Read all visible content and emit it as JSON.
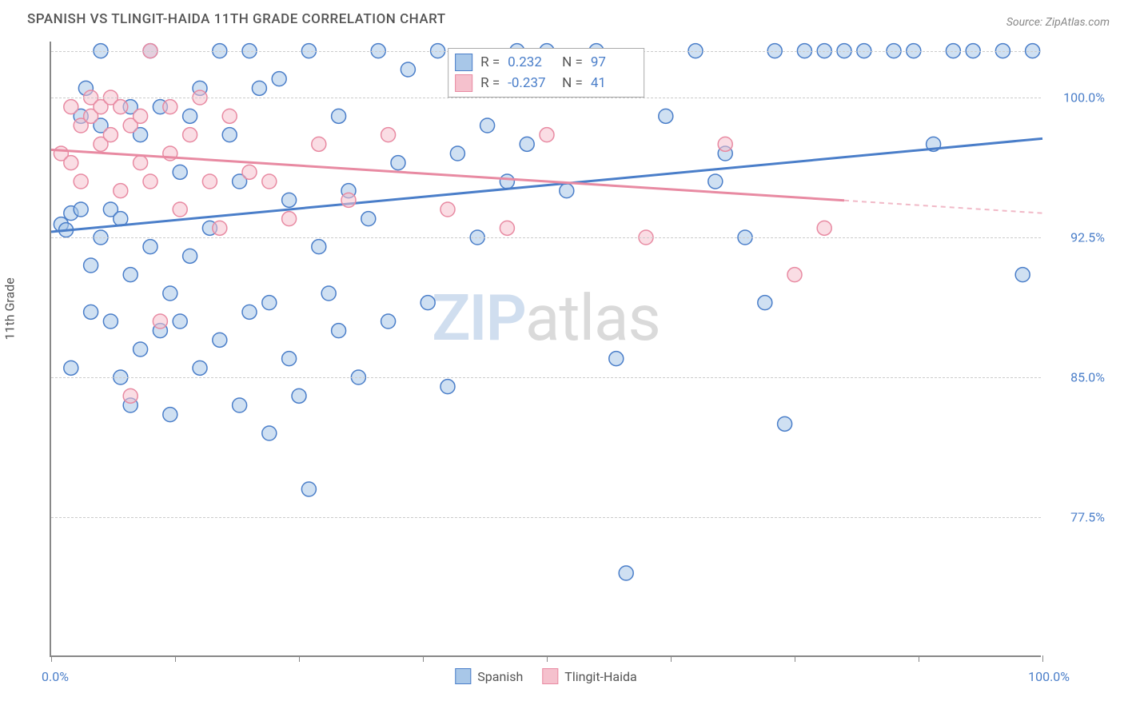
{
  "title": "SPANISH VS TLINGIT-HAIDA 11TH GRADE CORRELATION CHART",
  "source": "Source: ZipAtlas.com",
  "y_label": "11th Grade",
  "watermark": {
    "left": "ZIP",
    "right": "atlas"
  },
  "chart": {
    "type": "scatter",
    "xlim": [
      0,
      100
    ],
    "ylim": [
      70,
      103
    ],
    "x_ticks": [
      0,
      12.5,
      25,
      37.5,
      50,
      62.5,
      75,
      87.5,
      100
    ],
    "x_tick_labels": {
      "0": "0.0%",
      "100": "100.0%"
    },
    "y_gridlines": [
      77.5,
      85.0,
      92.5,
      100.0,
      102.5
    ],
    "y_tick_labels": {
      "77.5": "77.5%",
      "85.0": "85.0%",
      "92.5": "92.5%",
      "100.0": "100.0%"
    },
    "background_color": "#ffffff",
    "grid_color": "#cccccc",
    "axis_color": "#888888",
    "label_color": "#4a7ec9",
    "marker_radius": 9,
    "marker_opacity": 0.55,
    "series": [
      {
        "name": "Spanish",
        "color_fill": "#a8c7e8",
        "color_stroke": "#4a7ec9",
        "r": 0.232,
        "n": 97,
        "trend": {
          "x0": 0,
          "y0": 92.8,
          "x1": 100,
          "y1": 97.8,
          "solid_to_x": 100
        },
        "points": [
          [
            1,
            93.2
          ],
          [
            1.5,
            92.9
          ],
          [
            2,
            93.8
          ],
          [
            2,
            85.5
          ],
          [
            3,
            94.0
          ],
          [
            3,
            99.0
          ],
          [
            3.5,
            100.5
          ],
          [
            4,
            88.5
          ],
          [
            4,
            91.0
          ],
          [
            5,
            98.5
          ],
          [
            5,
            92.5
          ],
          [
            5,
            102.5
          ],
          [
            6,
            94.0
          ],
          [
            6,
            88.0
          ],
          [
            7,
            93.5
          ],
          [
            7,
            85.0
          ],
          [
            8,
            99.5
          ],
          [
            8,
            90.5
          ],
          [
            8,
            83.5
          ],
          [
            9,
            98.0
          ],
          [
            9,
            86.5
          ],
          [
            10,
            102.5
          ],
          [
            10,
            92.0
          ],
          [
            11,
            87.5
          ],
          [
            11,
            99.5
          ],
          [
            12,
            83.0
          ],
          [
            12,
            89.5
          ],
          [
            13,
            96.0
          ],
          [
            13,
            88.0
          ],
          [
            14,
            91.5
          ],
          [
            14,
            99.0
          ],
          [
            15,
            85.5
          ],
          [
            15,
            100.5
          ],
          [
            16,
            93.0
          ],
          [
            17,
            102.5
          ],
          [
            17,
            87.0
          ],
          [
            18,
            98.0
          ],
          [
            19,
            83.5
          ],
          [
            19,
            95.5
          ],
          [
            20,
            88.5
          ],
          [
            20,
            102.5
          ],
          [
            21,
            100.5
          ],
          [
            22,
            89.0
          ],
          [
            22,
            82.0
          ],
          [
            23,
            101.0
          ],
          [
            24,
            86.0
          ],
          [
            24,
            94.5
          ],
          [
            25,
            84.0
          ],
          [
            26,
            79.0
          ],
          [
            26,
            102.5
          ],
          [
            27,
            92.0
          ],
          [
            28,
            89.5
          ],
          [
            29,
            99.0
          ],
          [
            29,
            87.5
          ],
          [
            30,
            95.0
          ],
          [
            31,
            85.0
          ],
          [
            32,
            93.5
          ],
          [
            33,
            102.5
          ],
          [
            34,
            88.0
          ],
          [
            35,
            96.5
          ],
          [
            36,
            101.5
          ],
          [
            38,
            89.0
          ],
          [
            39,
            102.5
          ],
          [
            40,
            84.5
          ],
          [
            41,
            97.0
          ],
          [
            42,
            101.0
          ],
          [
            43,
            92.5
          ],
          [
            44,
            98.5
          ],
          [
            46,
            95.5
          ],
          [
            47,
            102.5
          ],
          [
            48,
            97.5
          ],
          [
            50,
            102.5
          ],
          [
            52,
            95.0
          ],
          [
            53,
            101.5
          ],
          [
            55,
            102.5
          ],
          [
            57,
            86.0
          ],
          [
            58,
            74.5
          ],
          [
            62,
            99.0
          ],
          [
            65,
            102.5
          ],
          [
            67,
            95.5
          ],
          [
            68,
            97.0
          ],
          [
            70,
            92.5
          ],
          [
            72,
            89.0
          ],
          [
            73,
            102.5
          ],
          [
            74,
            82.5
          ],
          [
            76,
            102.5
          ],
          [
            78,
            102.5
          ],
          [
            80,
            102.5
          ],
          [
            82,
            102.5
          ],
          [
            85,
            102.5
          ],
          [
            87,
            102.5
          ],
          [
            89,
            97.5
          ],
          [
            91,
            102.5
          ],
          [
            93,
            102.5
          ],
          [
            96,
            102.5
          ],
          [
            98,
            90.5
          ],
          [
            99,
            102.5
          ]
        ]
      },
      {
        "name": "Tlingit-Haida",
        "color_fill": "#f5c1cd",
        "color_stroke": "#e88aa2",
        "r": -0.237,
        "n": 41,
        "trend": {
          "x0": 0,
          "y0": 97.2,
          "x1": 100,
          "y1": 93.8,
          "solid_to_x": 80
        },
        "points": [
          [
            1,
            97.0
          ],
          [
            2,
            96.5
          ],
          [
            2,
            99.5
          ],
          [
            3,
            95.5
          ],
          [
            3,
            98.5
          ],
          [
            4,
            99.0
          ],
          [
            4,
            100.0
          ],
          [
            5,
            99.5
          ],
          [
            5,
            97.5
          ],
          [
            6,
            100.0
          ],
          [
            6,
            98.0
          ],
          [
            7,
            99.5
          ],
          [
            7,
            95.0
          ],
          [
            8,
            98.5
          ],
          [
            8,
            84.0
          ],
          [
            9,
            96.5
          ],
          [
            9,
            99.0
          ],
          [
            10,
            95.5
          ],
          [
            10,
            102.5
          ],
          [
            11,
            88.0
          ],
          [
            12,
            97.0
          ],
          [
            12,
            99.5
          ],
          [
            13,
            94.0
          ],
          [
            14,
            98.0
          ],
          [
            15,
            100.0
          ],
          [
            16,
            95.5
          ],
          [
            17,
            93.0
          ],
          [
            18,
            99.0
          ],
          [
            20,
            96.0
          ],
          [
            22,
            95.5
          ],
          [
            24,
            93.5
          ],
          [
            27,
            97.5
          ],
          [
            30,
            94.5
          ],
          [
            34,
            98.0
          ],
          [
            40,
            94.0
          ],
          [
            46,
            93.0
          ],
          [
            50,
            98.0
          ],
          [
            60,
            92.5
          ],
          [
            68,
            97.5
          ],
          [
            75,
            90.5
          ],
          [
            78,
            93.0
          ]
        ]
      }
    ],
    "legend_bottom": [
      "Spanish",
      "Tlingit-Haida"
    ]
  }
}
